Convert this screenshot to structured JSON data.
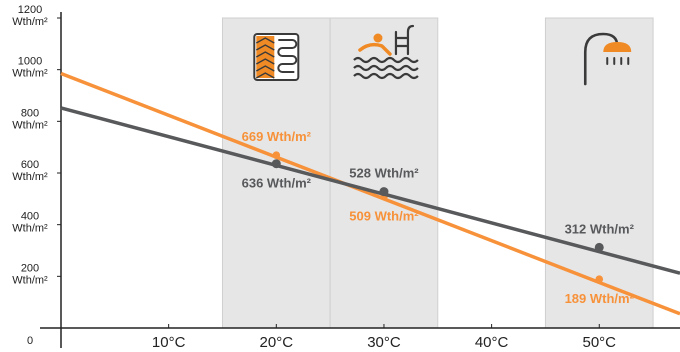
{
  "chart_data": {
    "type": "line",
    "title": "",
    "xlabel": "",
    "ylabel": "",
    "xlim": [
      0,
      57.5
    ],
    "ylim": [
      0,
      1200
    ],
    "x_ticks": [
      {
        "value": 0,
        "label": ""
      },
      {
        "value": 10,
        "label": "10°C"
      },
      {
        "value": 20,
        "label": "20°C"
      },
      {
        "value": 30,
        "label": "30°C"
      },
      {
        "value": 40,
        "label": "40°C"
      },
      {
        "value": 50,
        "label": "50°C"
      }
    ],
    "y_ticks": [
      {
        "value": 0,
        "lines": [
          "0"
        ]
      },
      {
        "value": 200,
        "lines": [
          "200",
          "Wth/m²"
        ]
      },
      {
        "value": 400,
        "lines": [
          "400",
          "Wth/m²"
        ]
      },
      {
        "value": 600,
        "lines": [
          "600",
          "Wth/m²"
        ]
      },
      {
        "value": 800,
        "lines": [
          "800",
          "Wth/m²"
        ]
      },
      {
        "value": 1000,
        "lines": [
          "1000",
          "Wth/m²"
        ]
      },
      {
        "value": 1200,
        "lines": [
          "1200",
          "Wth/m²"
        ]
      }
    ],
    "bands": [
      {
        "x0": 15,
        "x1": 25,
        "icon": "floor-heating-icon"
      },
      {
        "x0": 25,
        "x1": 35,
        "icon": "swimming-pool-icon"
      },
      {
        "x0": 45,
        "x1": 55,
        "icon": "shower-icon"
      }
    ],
    "series": [
      {
        "color": "#f7923a",
        "line": [
          [
            0,
            985
          ],
          [
            57.5,
            55
          ]
        ],
        "points": [
          {
            "x": 20,
            "y": 669,
            "label": "669 Wth/m²",
            "label_pos": "above"
          },
          {
            "x": 30,
            "y": 509,
            "label": "509 Wth/m²",
            "label_pos": "below"
          },
          {
            "x": 50,
            "y": 189,
            "label": "189 Wth/m²",
            "label_pos": "below"
          }
        ]
      },
      {
        "color": "#58595b",
        "line": [
          [
            0,
            852
          ],
          [
            57.5,
            212
          ]
        ],
        "points": [
          {
            "x": 20,
            "y": 636,
            "label": "636 Wth/m²",
            "label_pos": "below"
          },
          {
            "x": 30,
            "y": 528,
            "label": "528 Wth/m²",
            "label_pos": "above"
          },
          {
            "x": 50,
            "y": 312,
            "label": "312 Wth/m²",
            "label_pos": "above"
          }
        ]
      }
    ],
    "grid": false,
    "legend": "none"
  }
}
